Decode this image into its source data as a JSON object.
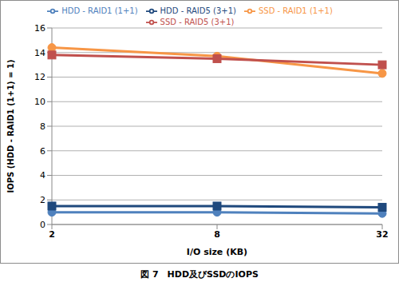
{
  "chart_data": {
    "type": "line",
    "title": "図 7　HDD及びSSDのIOPS",
    "x_label": "I/O size (KB)",
    "y_label": "IOPS (HDD - RAID1 (1+1) = 1)",
    "categories": [
      "2",
      "8",
      "32"
    ],
    "series": [
      {
        "name": "HDD - RAID1 (1+1)",
        "color": "#4f81bd",
        "marker": "circle",
        "values": [
          1.0,
          1.0,
          0.9
        ]
      },
      {
        "name": "SSD - RAID1 (1+1)",
        "color": "#f79646",
        "marker": "circle",
        "values": [
          14.4,
          13.7,
          12.3
        ]
      },
      {
        "name": "HDD - RAID5 (3+1)",
        "color": "#1f497d",
        "marker": "square",
        "values": [
          1.5,
          1.5,
          1.4
        ]
      },
      {
        "name": "SSD - RAID5 (3+1)",
        "color": "#c0504d",
        "marker": "square",
        "values": [
          13.8,
          13.5,
          13.0
        ]
      }
    ],
    "ylim": [
      0,
      16
    ],
    "yticks": [
      0,
      2,
      4,
      6,
      8,
      10,
      12,
      14,
      16
    ],
    "grid": true,
    "legend": "top"
  }
}
